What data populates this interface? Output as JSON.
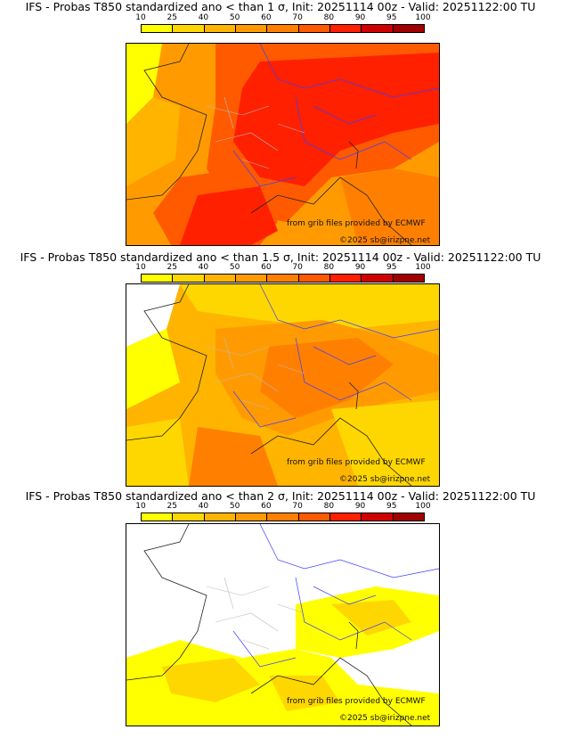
{
  "colorbar": {
    "ticks": [
      "10",
      "25",
      "40",
      "50",
      "60",
      "70",
      "80",
      "90",
      "95",
      "100"
    ],
    "colors": [
      "#ffff00",
      "#ffd700",
      "#ffb400",
      "#ff9b00",
      "#ff8000",
      "#ff5a00",
      "#ff2000",
      "#d00000",
      "#a00000"
    ]
  },
  "map_colors": {
    "white": "#ffffff",
    "l10": "#ffff00",
    "l25": "#ffd700",
    "l40": "#ffb400",
    "l50": "#ff9b00",
    "l60": "#ff8000",
    "l70": "#ff5a00",
    "l80": "#ff2000",
    "border": "#3c3cff",
    "coast": "#222222",
    "region": "#bbbbbb"
  },
  "panels": [
    {
      "title": "IFS - Probas T850  standardized ano < than 1 σ, Init: 20251114 00z - Valid: 20251122:00 TU",
      "credit_source": "from grib files provided by ECMWF",
      "credit_copyright": "©2025 sb@irizpne.net",
      "threshold_sigma": 1
    },
    {
      "title": "IFS - Probas T850  standardized ano < than 1.5 σ, Init: 20251114 00z - Valid: 20251122:00 TU",
      "credit_source": "from grib files provided by ECMWF",
      "credit_copyright": "©2025 sb@irizpne.net",
      "threshold_sigma": 1.5
    },
    {
      "title": "IFS - Probas T850  standardized ano < than 2 σ, Init: 20251114 00z - Valid: 20251122:00 TU",
      "credit_source": "from grib files provided by ECMWF",
      "credit_copyright": "©2025 sb@irizpne.net",
      "threshold_sigma": 2
    }
  ]
}
